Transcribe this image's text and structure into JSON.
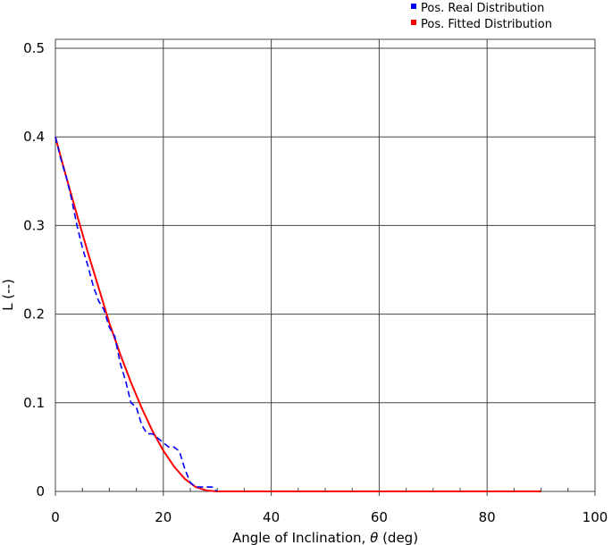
{
  "chart_data": {
    "type": "line",
    "xlabel_prefix": "Angle of Inclination, ",
    "xlabel_symbol": "θ",
    "xlabel_suffix": " (deg)",
    "ylabel": "L (--)",
    "xlim": [
      0,
      100
    ],
    "ylim": [
      0,
      0.5
    ],
    "x_ticks": [
      0,
      20,
      40,
      60,
      80,
      100
    ],
    "y_ticks": [
      0,
      0.1,
      0.2,
      0.3,
      0.4,
      0.5
    ],
    "x_tick_labels": [
      "0",
      "20",
      "40",
      "60",
      "80",
      "100"
    ],
    "y_tick_labels": [
      "0",
      "0.1",
      "0.2",
      "0.3",
      "0.4",
      "0.5"
    ],
    "grid": true,
    "legend_position": "top-right",
    "series": [
      {
        "name": "Pos. Real Distribution",
        "color": "#0000ff",
        "style": "dashed",
        "x": [
          0,
          1,
          2,
          3,
          4,
          5,
          6,
          7,
          8,
          9,
          10,
          11,
          12,
          13,
          14,
          15,
          16,
          17,
          18,
          19,
          20,
          21,
          22,
          23,
          24,
          25,
          26,
          27,
          28,
          29,
          30
        ],
        "y": [
          0.4,
          0.375,
          0.355,
          0.33,
          0.3,
          0.275,
          0.255,
          0.232,
          0.215,
          0.205,
          0.185,
          0.175,
          0.145,
          0.125,
          0.1,
          0.095,
          0.075,
          0.065,
          0.065,
          0.06,
          0.055,
          0.05,
          0.05,
          0.045,
          0.025,
          0.01,
          0.005,
          0.005,
          0.005,
          0.005,
          0.0
        ]
      },
      {
        "name": "Pos. Fitted Distribution",
        "color": "#ff0000",
        "style": "solid",
        "x": [
          0,
          2,
          4,
          6,
          8,
          10,
          12,
          14,
          16,
          18,
          20,
          22,
          24,
          26,
          28,
          30,
          35,
          40,
          50,
          60,
          70,
          80,
          90
        ],
        "y": [
          0.4,
          0.355,
          0.312,
          0.27,
          0.23,
          0.19,
          0.155,
          0.123,
          0.094,
          0.068,
          0.046,
          0.028,
          0.014,
          0.005,
          0.001,
          0.0,
          0.0,
          0.0,
          0.0,
          0.0,
          0.0,
          0.0,
          0.0
        ]
      }
    ]
  }
}
